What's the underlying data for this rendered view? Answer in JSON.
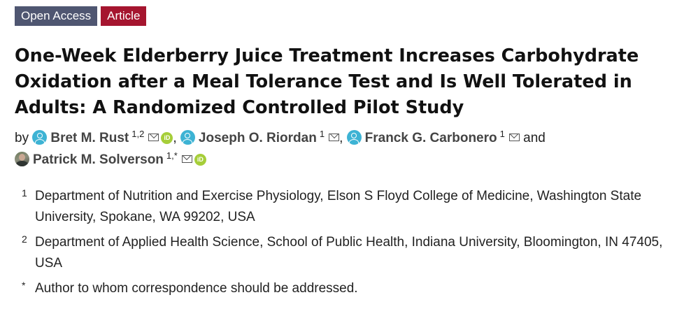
{
  "badges": {
    "open_access": "Open Access",
    "article": "Article"
  },
  "title": {
    "line1": "One-Week Elderberry Juice Treatment Increases Carbohydrate",
    "line2": "Oxidation after a Meal Tolerance Test and Is Well Tolerated in",
    "line3": "Adults: A Randomized Controlled Pilot Study"
  },
  "authors": {
    "by": "by",
    "and": "and",
    "list": [
      {
        "name": "Bret M. Rust",
        "sup": "1,2",
        "avatar": "person-icon",
        "orcid": true,
        "sep": ","
      },
      {
        "name": "Joseph O. Riordan",
        "sup": "1",
        "avatar": "person-icon",
        "orcid": false,
        "sep": ","
      },
      {
        "name": "Franck G. Carbonero",
        "sup": "1",
        "avatar": "person-icon",
        "orcid": false,
        "sep": ""
      },
      {
        "name": "Patrick M. Solverson",
        "sup": "1,*",
        "avatar": "photo",
        "orcid": true,
        "sep": ""
      }
    ]
  },
  "icons": {
    "mail": "mail-icon",
    "orcid": "orcid-icon",
    "orcid_text": "iD"
  },
  "affiliations": [
    {
      "num": "1",
      "text": "Department of Nutrition and Exercise Physiology, Elson S Floyd College of Medicine, Washington State University, Spokane, WA 99202, USA"
    },
    {
      "num": "2",
      "text": "Department of Applied Health Science, School of Public Health, Indiana University, Bloomington, IN 47405, USA"
    },
    {
      "num": "*",
      "text": "Author to whom correspondence should be addressed."
    }
  ],
  "colors": {
    "open_access_bg": "#4f5671",
    "article_bg": "#a5152f",
    "avatar": "#3db3d4",
    "orcid": "#a6ce39"
  }
}
